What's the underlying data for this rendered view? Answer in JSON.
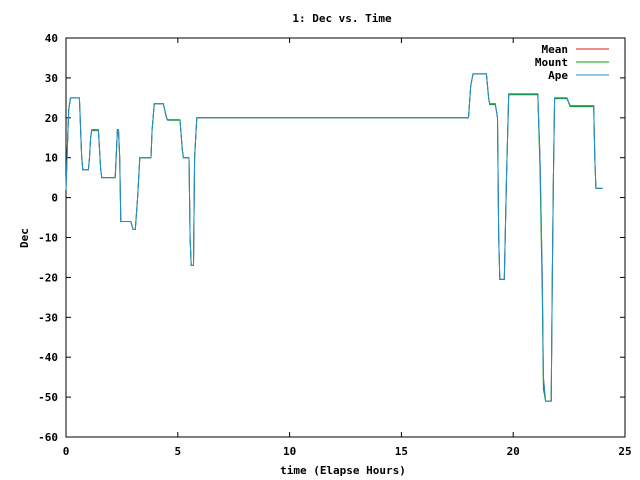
{
  "chart_data": {
    "type": "line",
    "title": "1: Dec vs. Time",
    "xlabel": "time (Elapse Hours)",
    "ylabel": "Dec",
    "xlim": [
      0,
      25
    ],
    "ylim": [
      -60,
      40
    ],
    "xticks": [
      0,
      5,
      10,
      15,
      20,
      25
    ],
    "yticks": [
      -60,
      -50,
      -40,
      -30,
      -20,
      -10,
      0,
      10,
      20,
      30,
      40
    ],
    "grid": false,
    "legend_position": "top-right",
    "series": [
      {
        "name": "Mean",
        "color": "#e41a1c",
        "points": [
          [
            0.0,
            2
          ],
          [
            0.06,
            12
          ],
          [
            0.12,
            22
          ],
          [
            0.2,
            25
          ],
          [
            0.3,
            25
          ],
          [
            0.6,
            25
          ],
          [
            0.7,
            10
          ],
          [
            0.75,
            7
          ],
          [
            1.0,
            7
          ],
          [
            1.05,
            10
          ],
          [
            1.1,
            15
          ],
          [
            1.15,
            17
          ],
          [
            1.45,
            17
          ],
          [
            1.55,
            7
          ],
          [
            1.6,
            5
          ],
          [
            2.2,
            5
          ],
          [
            2.3,
            17
          ],
          [
            2.35,
            17
          ],
          [
            2.4,
            10
          ],
          [
            2.45,
            -6
          ],
          [
            2.9,
            -6
          ],
          [
            3.0,
            -8
          ],
          [
            3.1,
            -8
          ],
          [
            3.2,
            0
          ],
          [
            3.3,
            10
          ],
          [
            3.8,
            10
          ],
          [
            3.85,
            17
          ],
          [
            3.95,
            23.5
          ],
          [
            4.35,
            23.5
          ],
          [
            4.5,
            20
          ],
          [
            4.55,
            19.5
          ],
          [
            5.1,
            19.5
          ],
          [
            5.2,
            12
          ],
          [
            5.25,
            10
          ],
          [
            5.5,
            10
          ],
          [
            5.55,
            -10
          ],
          [
            5.6,
            -17
          ],
          [
            5.7,
            -17
          ],
          [
            5.75,
            10
          ],
          [
            5.85,
            20
          ],
          [
            18.0,
            20
          ],
          [
            18.1,
            28
          ],
          [
            18.2,
            31
          ],
          [
            18.8,
            31
          ],
          [
            18.9,
            25
          ],
          [
            18.95,
            23.5
          ],
          [
            19.2,
            23.5
          ],
          [
            19.3,
            20
          ],
          [
            19.35,
            -10
          ],
          [
            19.4,
            -20.5
          ],
          [
            19.6,
            -20.5
          ],
          [
            19.7,
            5
          ],
          [
            19.8,
            26
          ],
          [
            20.9,
            26
          ],
          [
            21.1,
            26
          ],
          [
            21.2,
            10
          ],
          [
            21.3,
            -20
          ],
          [
            21.35,
            -45
          ],
          [
            21.45,
            -51
          ],
          [
            21.7,
            -51
          ],
          [
            21.75,
            -20
          ],
          [
            21.8,
            5
          ],
          [
            21.85,
            25
          ],
          [
            22.4,
            25
          ],
          [
            22.55,
            23
          ],
          [
            23.6,
            23
          ],
          [
            23.65,
            10
          ],
          [
            23.7,
            2.3
          ],
          [
            24.0,
            2.3
          ]
        ]
      },
      {
        "name": "Mount",
        "color": "#00a000",
        "points": [
          [
            0.0,
            2
          ],
          [
            0.06,
            12
          ],
          [
            0.12,
            22
          ],
          [
            0.2,
            25
          ],
          [
            0.3,
            25
          ],
          [
            0.6,
            25
          ],
          [
            0.7,
            10
          ],
          [
            0.75,
            7
          ],
          [
            1.0,
            7
          ],
          [
            1.05,
            10
          ],
          [
            1.1,
            15
          ],
          [
            1.15,
            16.8
          ],
          [
            1.45,
            16.8
          ],
          [
            1.55,
            7
          ],
          [
            1.6,
            5
          ],
          [
            2.2,
            5
          ],
          [
            2.3,
            17
          ],
          [
            2.35,
            17
          ],
          [
            2.4,
            10
          ],
          [
            2.45,
            -6
          ],
          [
            2.9,
            -6
          ],
          [
            3.0,
            -8
          ],
          [
            3.1,
            -8
          ],
          [
            3.2,
            0
          ],
          [
            3.3,
            10
          ],
          [
            3.8,
            10
          ],
          [
            3.85,
            17
          ],
          [
            3.95,
            23.5
          ],
          [
            4.35,
            23.5
          ],
          [
            4.5,
            19.8
          ],
          [
            4.55,
            19.4
          ],
          [
            5.1,
            19.4
          ],
          [
            5.2,
            12
          ],
          [
            5.25,
            10
          ],
          [
            5.5,
            10
          ],
          [
            5.55,
            -10
          ],
          [
            5.6,
            -17
          ],
          [
            5.7,
            -17
          ],
          [
            5.75,
            10
          ],
          [
            5.85,
            20
          ],
          [
            18.0,
            20
          ],
          [
            18.1,
            28
          ],
          [
            18.2,
            31
          ],
          [
            18.8,
            31
          ],
          [
            18.9,
            25
          ],
          [
            18.95,
            23.3
          ],
          [
            19.2,
            23.3
          ],
          [
            19.3,
            20
          ],
          [
            19.35,
            -10
          ],
          [
            19.4,
            -20.5
          ],
          [
            19.6,
            -20.5
          ],
          [
            19.7,
            5
          ],
          [
            19.8,
            25.8
          ],
          [
            20.9,
            25.8
          ],
          [
            21.1,
            25.8
          ],
          [
            21.2,
            7
          ],
          [
            21.3,
            -25
          ],
          [
            21.35,
            -48
          ],
          [
            21.45,
            -51
          ],
          [
            21.7,
            -51
          ],
          [
            21.75,
            -20
          ],
          [
            21.8,
            5
          ],
          [
            21.85,
            24.8
          ],
          [
            22.4,
            24.8
          ],
          [
            22.55,
            22.8
          ],
          [
            23.6,
            22.8
          ],
          [
            23.65,
            10
          ],
          [
            23.7,
            2.3
          ],
          [
            24.0,
            2.3
          ]
        ]
      },
      {
        "name": "Ape",
        "color": "#1f8fd6",
        "points": [
          [
            0.0,
            2
          ],
          [
            0.06,
            12
          ],
          [
            0.12,
            22
          ],
          [
            0.2,
            25
          ],
          [
            0.3,
            25
          ],
          [
            0.6,
            25
          ],
          [
            0.7,
            10
          ],
          [
            0.75,
            7
          ],
          [
            1.0,
            7
          ],
          [
            1.05,
            10
          ],
          [
            1.1,
            15
          ],
          [
            1.15,
            17
          ],
          [
            1.45,
            17
          ],
          [
            1.55,
            7
          ],
          [
            1.6,
            5
          ],
          [
            2.2,
            5
          ],
          [
            2.3,
            17
          ],
          [
            2.35,
            17
          ],
          [
            2.4,
            10
          ],
          [
            2.45,
            -6
          ],
          [
            2.9,
            -6
          ],
          [
            3.0,
            -8
          ],
          [
            3.1,
            -8
          ],
          [
            3.2,
            0
          ],
          [
            3.3,
            10
          ],
          [
            3.8,
            10
          ],
          [
            3.85,
            17
          ],
          [
            3.95,
            23.5
          ],
          [
            4.35,
            23.5
          ],
          [
            4.5,
            20
          ],
          [
            4.55,
            19.5
          ],
          [
            5.1,
            19.5
          ],
          [
            5.2,
            12
          ],
          [
            5.25,
            10
          ],
          [
            5.5,
            10
          ],
          [
            5.55,
            -10
          ],
          [
            5.6,
            -17
          ],
          [
            5.7,
            -17
          ],
          [
            5.75,
            10
          ],
          [
            5.85,
            20
          ],
          [
            18.0,
            20
          ],
          [
            18.1,
            28
          ],
          [
            18.2,
            31
          ],
          [
            18.8,
            31
          ],
          [
            18.9,
            25
          ],
          [
            18.95,
            23.5
          ],
          [
            19.2,
            23.5
          ],
          [
            19.3,
            20
          ],
          [
            19.35,
            -10
          ],
          [
            19.4,
            -20.5
          ],
          [
            19.6,
            -20.5
          ],
          [
            19.7,
            5
          ],
          [
            19.8,
            26
          ],
          [
            20.9,
            26
          ],
          [
            21.1,
            26
          ],
          [
            21.2,
            10
          ],
          [
            21.3,
            -20
          ],
          [
            21.35,
            -45
          ],
          [
            21.45,
            -51
          ],
          [
            21.7,
            -51
          ],
          [
            21.75,
            -20
          ],
          [
            21.8,
            5
          ],
          [
            21.85,
            25
          ],
          [
            22.4,
            25
          ],
          [
            22.55,
            23
          ],
          [
            23.6,
            23
          ],
          [
            23.65,
            10
          ],
          [
            23.7,
            2.3
          ],
          [
            24.0,
            2.3
          ]
        ]
      }
    ]
  }
}
